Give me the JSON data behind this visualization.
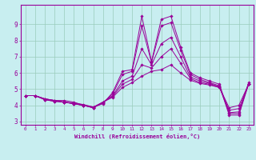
{
  "title": "",
  "xlabel": "Windchill (Refroidissement éolien,°C)",
  "ylabel": "",
  "xlim": [
    -0.5,
    23.5
  ],
  "ylim": [
    2.8,
    10.2
  ],
  "yticks": [
    3,
    4,
    5,
    6,
    7,
    8,
    9
  ],
  "xticks": [
    0,
    1,
    2,
    3,
    4,
    5,
    6,
    7,
    8,
    9,
    10,
    11,
    12,
    13,
    14,
    15,
    16,
    17,
    18,
    19,
    20,
    21,
    22,
    23
  ],
  "bg_color": "#c8eef0",
  "grid_color": "#99ccbb",
  "line_color": "#990099",
  "lines": [
    [
      4.6,
      4.6,
      4.4,
      4.3,
      4.3,
      4.2,
      4.0,
      3.9,
      4.1,
      4.8,
      6.1,
      6.2,
      9.5,
      6.7,
      9.3,
      9.5,
      7.6,
      6.0,
      5.7,
      5.5,
      5.3,
      3.5,
      3.5,
      5.4
    ],
    [
      4.6,
      4.6,
      4.4,
      4.3,
      4.2,
      4.1,
      4.0,
      3.85,
      4.15,
      4.7,
      5.9,
      6.1,
      8.9,
      6.65,
      8.9,
      9.1,
      7.4,
      5.9,
      5.6,
      5.4,
      5.2,
      3.4,
      3.4,
      5.3
    ],
    [
      4.6,
      4.6,
      4.4,
      4.3,
      4.2,
      4.15,
      4.05,
      3.9,
      4.2,
      4.6,
      5.5,
      5.8,
      7.5,
      6.5,
      7.8,
      8.2,
      7.0,
      5.75,
      5.5,
      5.35,
      5.15,
      3.55,
      3.6,
      5.3
    ],
    [
      4.6,
      4.6,
      4.35,
      4.25,
      4.2,
      4.1,
      4.0,
      3.85,
      4.2,
      4.55,
      5.3,
      5.6,
      6.5,
      6.3,
      7.0,
      7.5,
      6.6,
      5.65,
      5.4,
      5.3,
      5.1,
      3.7,
      3.8,
      5.3
    ],
    [
      4.6,
      4.6,
      4.35,
      4.25,
      4.2,
      4.1,
      4.0,
      3.85,
      4.2,
      4.5,
      5.1,
      5.4,
      5.8,
      6.1,
      6.2,
      6.5,
      6.0,
      5.55,
      5.35,
      5.25,
      5.1,
      3.85,
      4.0,
      5.3
    ]
  ]
}
